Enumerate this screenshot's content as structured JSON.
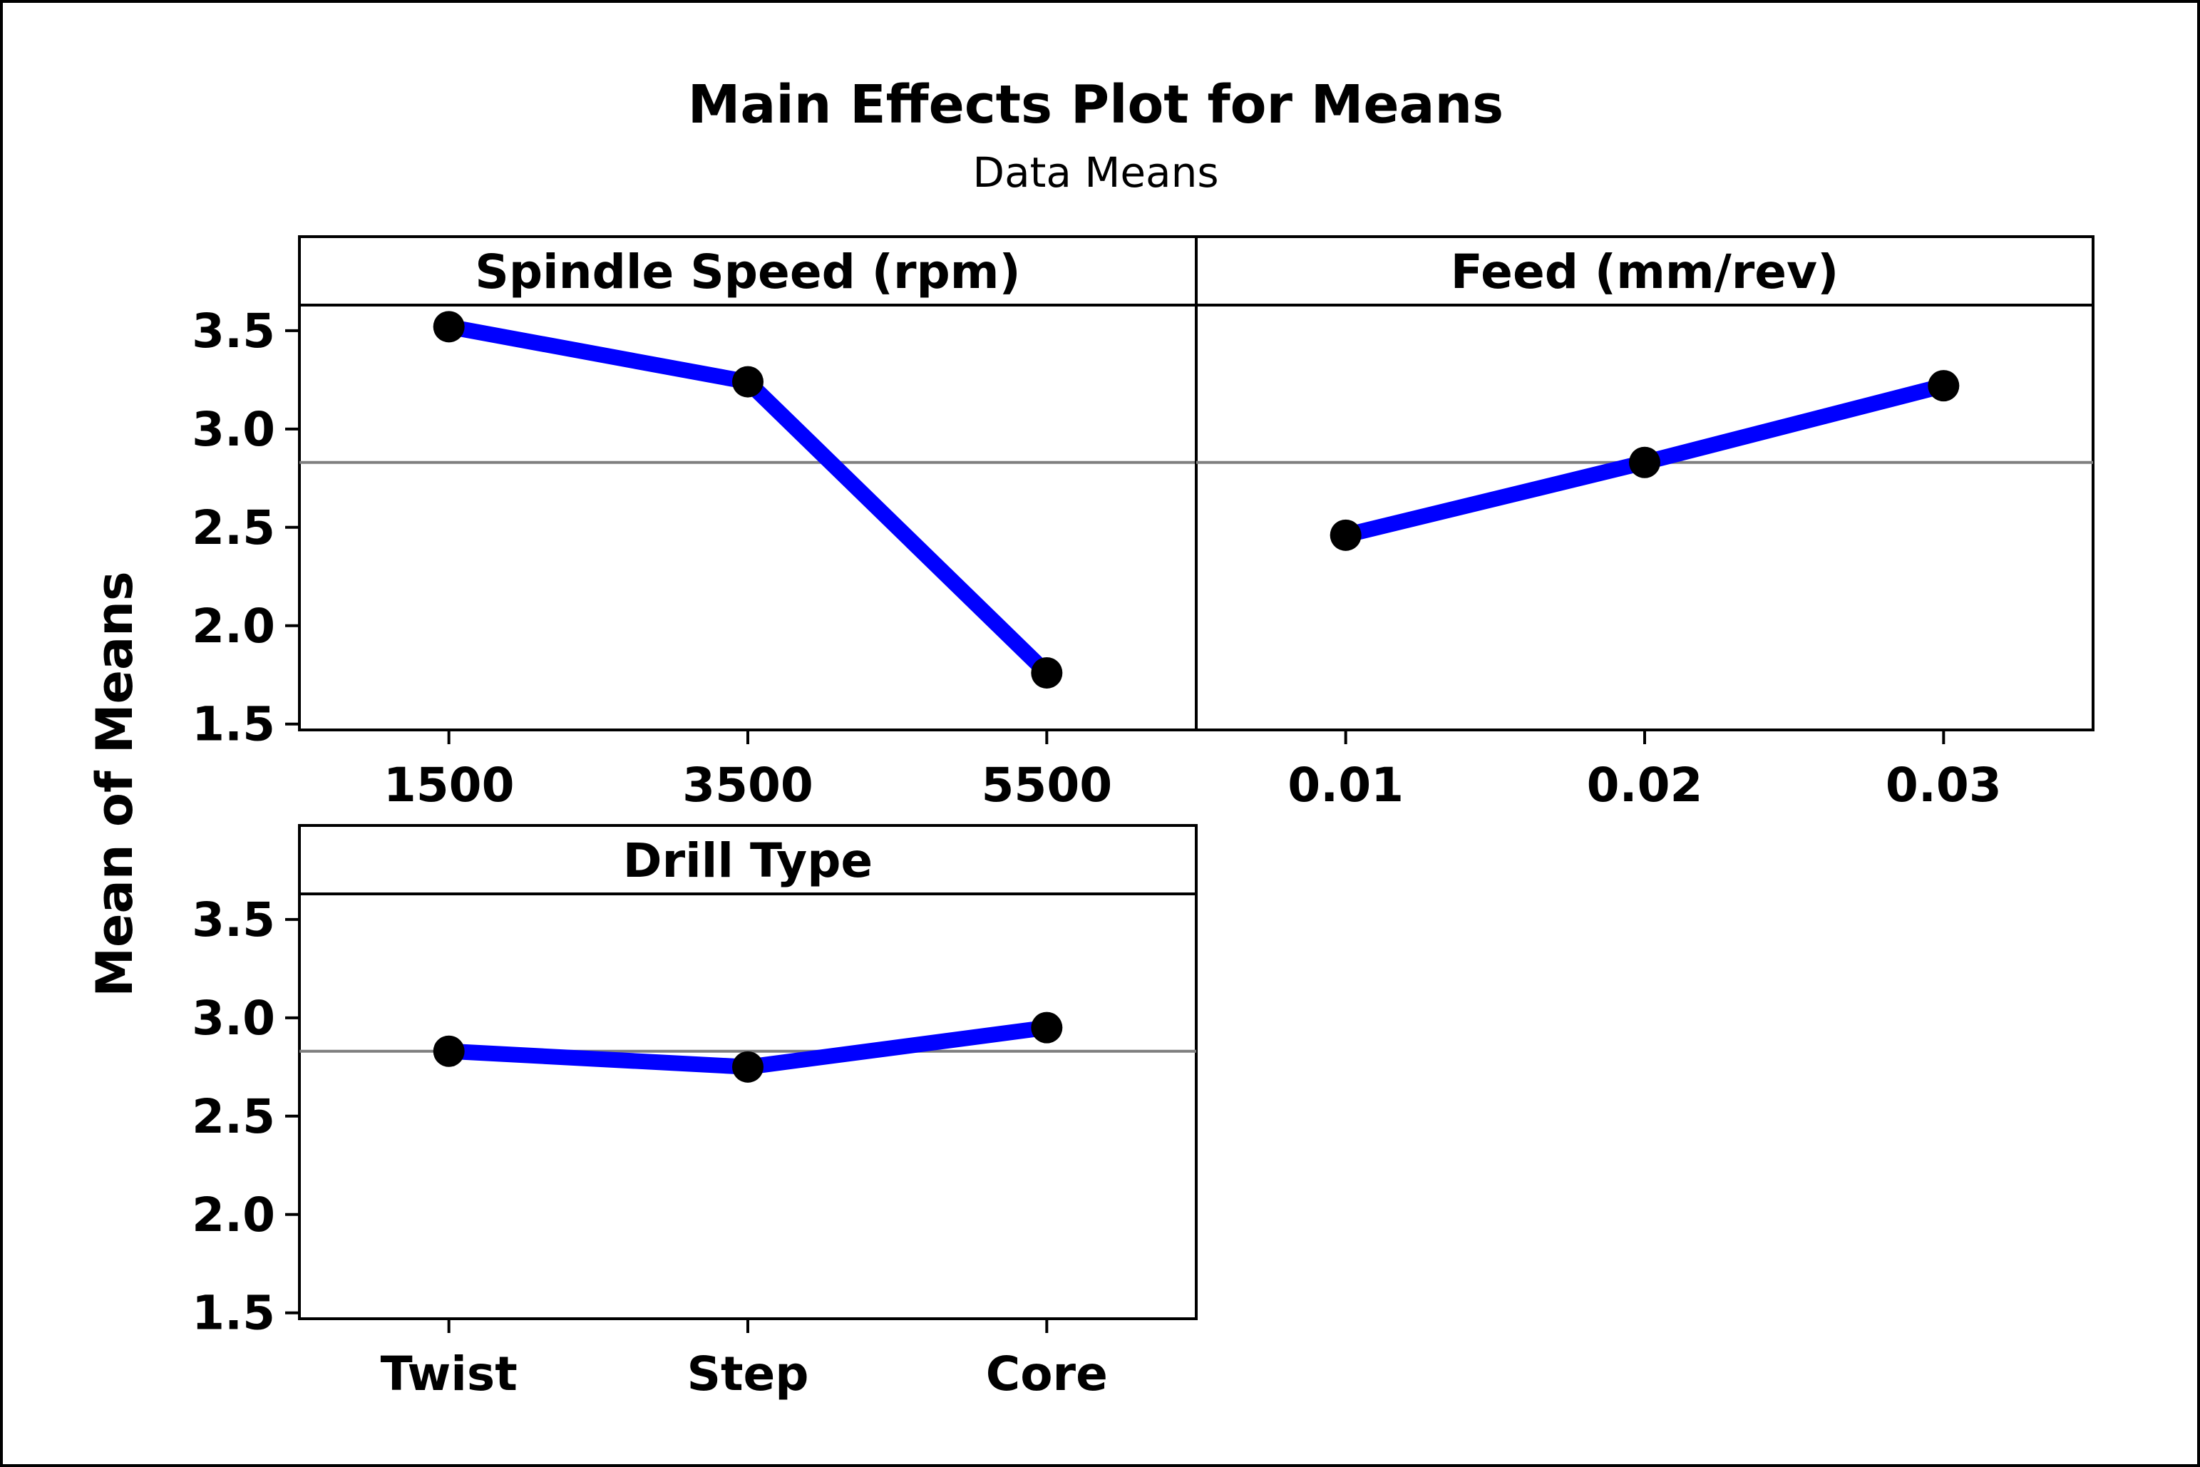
{
  "chart_data": {
    "type": "line",
    "title": "Main Effects Plot for Means",
    "subtitle": "Data Means",
    "ylabel": "Mean of Means",
    "ylim": [
      1.47,
      3.63
    ],
    "yticks": [
      1.5,
      2.0,
      2.5,
      3.0,
      3.5
    ],
    "ytick_labels": [
      "1.5",
      "2.0",
      "2.5",
      "3.0",
      "3.5"
    ],
    "reference_line": 2.83,
    "line_color": "#0000ff",
    "point_color": "#000000",
    "reference_color": "#7f7f7f",
    "panels": [
      {
        "name": "Spindle Speed (rpm)",
        "categories": [
          "1500",
          "3500",
          "5500"
        ],
        "values": [
          3.52,
          3.24,
          1.76
        ]
      },
      {
        "name": "Feed (mm/rev)",
        "categories": [
          "0.01",
          "0.02",
          "0.03"
        ],
        "values": [
          2.46,
          2.83,
          3.22
        ]
      },
      {
        "name": "Drill Type",
        "categories": [
          "Twist",
          "Step",
          "Core"
        ],
        "values": [
          2.83,
          2.75,
          2.95
        ]
      }
    ]
  }
}
